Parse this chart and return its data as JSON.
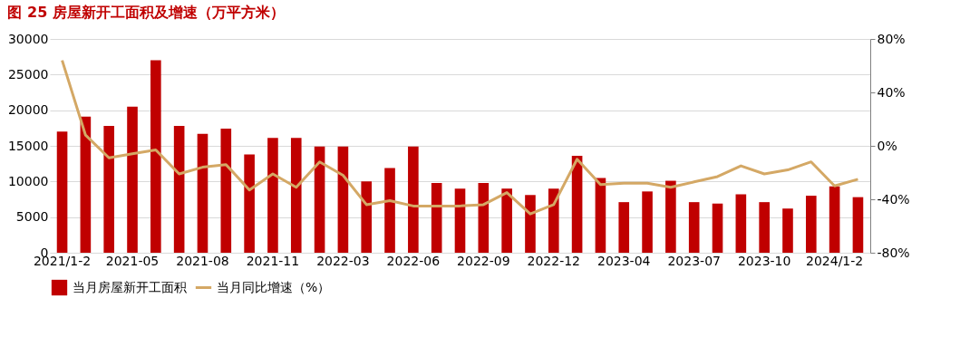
{
  "chart_data": {
    "type": "bar",
    "title": "图 25 房屋新开工面积及增速（万平方米）",
    "categories": [
      "2021/1-2",
      null,
      null,
      "2021-05",
      null,
      null,
      "2021-08",
      null,
      null,
      "2021-11",
      null,
      null,
      "2022-03",
      null,
      null,
      "2022-06",
      null,
      null,
      "2022-09",
      null,
      null,
      "2022-12",
      null,
      null,
      "2023-04",
      null,
      null,
      "2023-07",
      null,
      null,
      "2023-10",
      null,
      null,
      "2024/1-2",
      null
    ],
    "series": [
      {
        "name": "当月房屋新开工面积",
        "color": "#c00000",
        "values": [
          17000,
          19100,
          17800,
          20500,
          27000,
          17800,
          16700,
          17400,
          13800,
          16100,
          16100,
          14900,
          14900,
          10000,
          11900,
          14900,
          9800,
          9000,
          9800,
          9000,
          8100,
          9000,
          13600,
          10500,
          7100,
          8600,
          10100,
          7100,
          6900,
          8200,
          7100,
          6200,
          8000,
          9300,
          7800
        ]
      },
      {
        "name": "当月同比增速（%）",
        "type": "line",
        "axis": "y2",
        "color": "#d4a865",
        "values": [
          64,
          8,
          -9,
          -6,
          -3,
          -21,
          -16,
          -14,
          -33,
          -21,
          -31,
          -12,
          -22,
          -44,
          -41,
          -45,
          -45,
          -45,
          -44,
          -35,
          -51,
          -44,
          -10,
          -29,
          -28,
          -28,
          -31,
          -27,
          -23,
          -15,
          -21,
          -18,
          -12,
          -30,
          -25
        ]
      }
    ],
    "ylim": [
      0,
      30000
    ],
    "yticks": [
      0,
      5000,
      10000,
      15000,
      20000,
      25000,
      30000
    ],
    "y2lim": [
      -80,
      80
    ],
    "y2ticks": [
      {
        "value": -80,
        "label": "-80%"
      },
      {
        "value": -40,
        "label": "-40%"
      },
      {
        "value": 0,
        "label": "0%"
      },
      {
        "value": 40,
        "label": "40%"
      },
      {
        "value": 80,
        "label": "80%"
      }
    ],
    "grid": "y",
    "legend": "bottom",
    "line_style": "solid",
    "marker": "none"
  }
}
